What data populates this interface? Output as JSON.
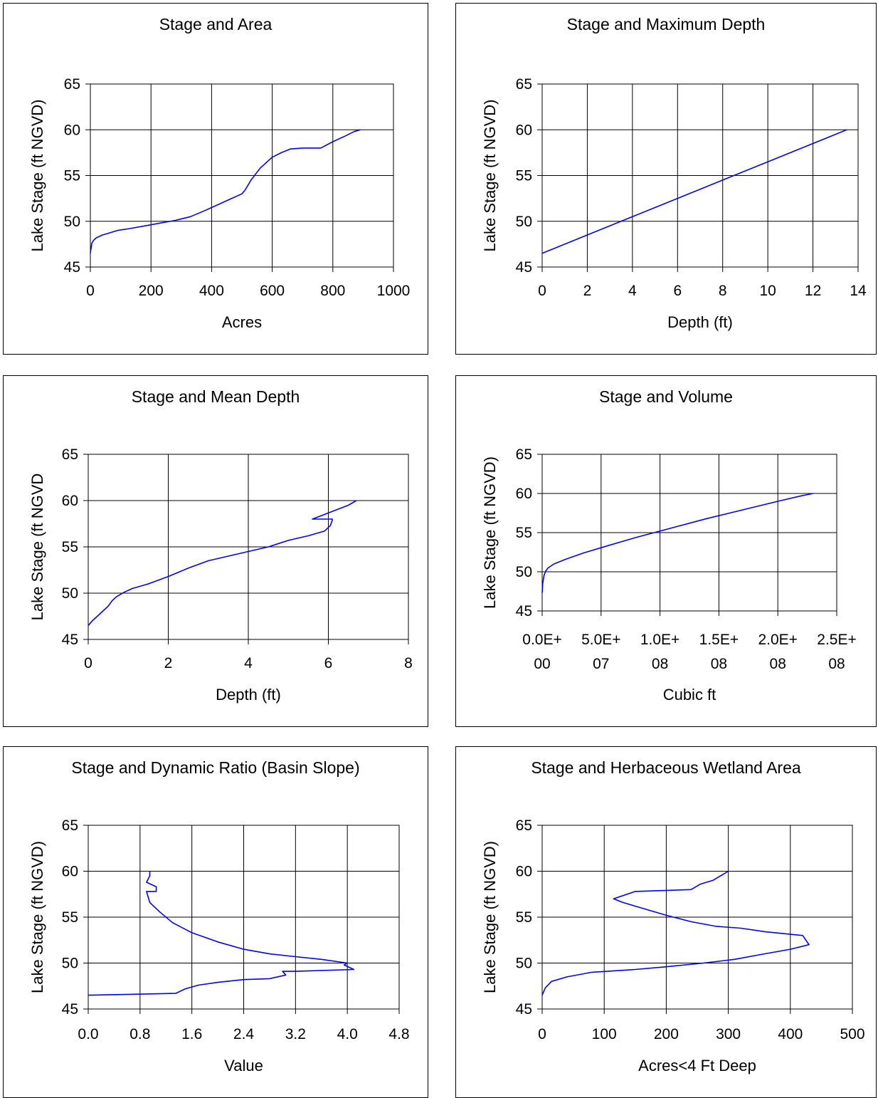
{
  "chart_data": [
    {
      "type": "line",
      "title": "Stage and Area",
      "xlabel": "Acres",
      "ylabel": "Lake Stage (ft NGVD)",
      "xlim": [
        0,
        1000
      ],
      "ylim": [
        45,
        65
      ],
      "xticks": [
        "0",
        "200",
        "400",
        "600",
        "800",
        "1000"
      ],
      "yticks": [
        "45",
        "50",
        "55",
        "60",
        "65"
      ],
      "grid": true,
      "line_color": "#0000ff",
      "series": [
        {
          "x": [
            0,
            2,
            5,
            10,
            20,
            40,
            60,
            90,
            130,
            180,
            230,
            280,
            330,
            380,
            420,
            460,
            500,
            510,
            530,
            560,
            600,
            630,
            660,
            700,
            760,
            800,
            840,
            870,
            890
          ],
          "y": [
            46.5,
            47.0,
            47.6,
            47.9,
            48.2,
            48.5,
            48.7,
            49.0,
            49.2,
            49.5,
            49.8,
            50.1,
            50.5,
            51.2,
            51.8,
            52.4,
            53.0,
            53.4,
            54.5,
            55.8,
            57.0,
            57.5,
            57.9,
            58.0,
            58.0,
            58.7,
            59.3,
            59.8,
            60.0
          ]
        }
      ]
    },
    {
      "type": "line",
      "title": "Stage and Maximum Depth",
      "xlabel": "Depth (ft)",
      "ylabel": "Lake Stage (ft NGVD)",
      "xlim": [
        0,
        14
      ],
      "ylim": [
        45,
        65
      ],
      "xticks": [
        "0",
        "2",
        "4",
        "6",
        "8",
        "10",
        "12",
        "14"
      ],
      "yticks": [
        "45",
        "50",
        "55",
        "60",
        "65"
      ],
      "grid": true,
      "line_color": "#0000ff",
      "series": [
        {
          "x": [
            0,
            2,
            4,
            6,
            8,
            10,
            12,
            13.5
          ],
          "y": [
            46.5,
            48.5,
            50.5,
            52.5,
            54.5,
            56.5,
            58.5,
            60.0
          ]
        }
      ]
    },
    {
      "type": "line",
      "title": "Stage and Mean Depth",
      "xlabel": "Depth (ft)",
      "ylabel": "Lake Stage (ft NGVD",
      "xlim": [
        0,
        8
      ],
      "ylim": [
        45,
        65
      ],
      "xticks": [
        "0",
        "2",
        "4",
        "6",
        "8"
      ],
      "yticks": [
        "45",
        "50",
        "55",
        "60",
        "65"
      ],
      "grid": true,
      "line_color": "#0000ff",
      "series": [
        {
          "x": [
            0,
            0.1,
            0.3,
            0.5,
            0.6,
            0.7,
            0.9,
            1.1,
            1.5,
            2.0,
            2.5,
            3.0,
            3.5,
            4.0,
            4.5,
            5.0,
            5.5,
            5.9,
            6.05,
            6.1,
            6.1,
            5.6,
            5.9,
            6.2,
            6.5,
            6.7
          ],
          "y": [
            46.5,
            47.0,
            47.8,
            48.6,
            49.2,
            49.6,
            50.1,
            50.5,
            51.0,
            51.8,
            52.7,
            53.5,
            54.0,
            54.5,
            55.0,
            55.7,
            56.2,
            56.7,
            57.3,
            57.9,
            58.0,
            58.0,
            58.5,
            59.0,
            59.5,
            60.0
          ]
        }
      ]
    },
    {
      "type": "line",
      "title": "Stage and Volume",
      "xlabel": "Cubic ft",
      "ylabel": "Lake Stage (ft NGVD)",
      "xlim": [
        0,
        250000000
      ],
      "ylim": [
        45,
        65
      ],
      "xticks": [
        "0.0E+\n00",
        "5.0E+\n07",
        "1.0E+\n08",
        "1.5E+\n08",
        "2.0E+\n08",
        "2.5E+\n08"
      ],
      "yticks": [
        "45",
        "50",
        "55",
        "60",
        "65"
      ],
      "grid": true,
      "line_color": "#0000ff",
      "series": [
        {
          "x": [
            0,
            500000,
            1500000,
            3000000,
            5000000,
            10000000,
            20000000,
            35000000,
            55000000,
            80000000,
            110000000,
            140000000,
            170000000,
            200000000,
            220000000,
            230000000
          ],
          "y": [
            47.3,
            48.5,
            49.5,
            50.1,
            50.5,
            51.0,
            51.6,
            52.4,
            53.3,
            54.4,
            55.6,
            56.8,
            57.9,
            59.0,
            59.7,
            60.0
          ]
        }
      ]
    },
    {
      "type": "line",
      "title": "Stage and Dynamic Ratio (Basin Slope)",
      "xlabel": "Value",
      "ylabel": "Lake Stage (ft NGVD)",
      "xlim": [
        0,
        4.8
      ],
      "ylim": [
        45,
        65
      ],
      "xticks": [
        "0.0",
        "0.8",
        "1.6",
        "2.4",
        "3.2",
        "4.0",
        "4.8"
      ],
      "yticks": [
        "45",
        "50",
        "55",
        "60",
        "65"
      ],
      "grid": true,
      "line_color": "#0000ff",
      "series": [
        {
          "x": [
            0.0,
            1.35,
            1.5,
            1.7,
            2.0,
            2.4,
            2.8,
            3.05,
            3.0,
            3.2,
            4.1,
            3.95,
            4.0,
            3.6,
            3.2,
            2.8,
            2.4,
            2.0,
            1.6,
            1.3,
            1.1,
            0.95,
            0.9,
            1.05,
            1.05,
            0.9,
            0.95,
            0.95
          ],
          "y": [
            46.5,
            46.7,
            47.2,
            47.6,
            47.9,
            48.2,
            48.3,
            48.7,
            49.1,
            49.1,
            49.3,
            49.8,
            50.0,
            50.4,
            50.7,
            51.0,
            51.5,
            52.3,
            53.3,
            54.4,
            55.6,
            56.6,
            57.8,
            57.8,
            58.3,
            58.8,
            59.5,
            60.0
          ]
        }
      ]
    },
    {
      "type": "line",
      "title": "Stage and Herbaceous Wetland Area",
      "xlabel": "Acres<4 Ft Deep",
      "ylabel": "Lake Stage (ft NGVD)",
      "xlim": [
        0,
        500
      ],
      "ylim": [
        45,
        65
      ],
      "xticks": [
        "0",
        "100",
        "200",
        "300",
        "400",
        "500"
      ],
      "yticks": [
        "45",
        "50",
        "55",
        "60",
        "65"
      ],
      "grid": true,
      "line_color": "#0000ff",
      "series": [
        {
          "x": [
            0,
            5,
            15,
            40,
            80,
            150,
            200,
            260,
            310,
            350,
            400,
            430,
            420,
            360,
            320,
            280,
            240,
            200,
            160,
            130,
            115,
            150,
            240,
            255,
            275,
            290,
            300
          ],
          "y": [
            46.5,
            47.3,
            48.0,
            48.5,
            49.0,
            49.3,
            49.6,
            50.0,
            50.4,
            50.9,
            51.5,
            52.0,
            53.0,
            53.4,
            53.8,
            54.0,
            54.5,
            55.2,
            56.0,
            56.6,
            57.0,
            57.8,
            58.0,
            58.6,
            59.0,
            59.6,
            60.0
          ]
        }
      ]
    }
  ]
}
